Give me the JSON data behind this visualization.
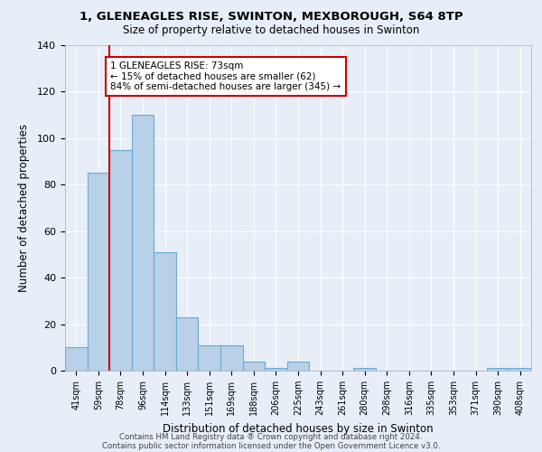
{
  "title1": "1, GLENEAGLES RISE, SWINTON, MEXBOROUGH, S64 8TP",
  "title2": "Size of property relative to detached houses in Swinton",
  "xlabel": "Distribution of detached houses by size in Swinton",
  "ylabel": "Number of detached properties",
  "categories": [
    "41sqm",
    "59sqm",
    "78sqm",
    "96sqm",
    "114sqm",
    "133sqm",
    "151sqm",
    "169sqm",
    "188sqm",
    "206sqm",
    "225sqm",
    "243sqm",
    "261sqm",
    "280sqm",
    "298sqm",
    "316sqm",
    "335sqm",
    "353sqm",
    "371sqm",
    "390sqm",
    "408sqm"
  ],
  "values": [
    10,
    85,
    95,
    110,
    51,
    23,
    11,
    11,
    4,
    1,
    4,
    0,
    0,
    1,
    0,
    0,
    0,
    0,
    0,
    1,
    1
  ],
  "bar_color": "#b8d0e8",
  "bar_edge_color": "#6aaad4",
  "vline_x": 1.5,
  "vline_color": "#cc0000",
  "annotation_text": "1 GLENEAGLES RISE: 73sqm\n← 15% of detached houses are smaller (62)\n84% of semi-detached houses are larger (345) →",
  "annotation_box_color": "#ffffff",
  "annotation_box_edge": "#cc0000",
  "ylim": [
    0,
    140
  ],
  "yticks": [
    0,
    20,
    40,
    60,
    80,
    100,
    120,
    140
  ],
  "footer1": "Contains HM Land Registry data ® Crown copyright and database right 2024.",
  "footer2": "Contains public sector information licensed under the Open Government Licence v3.0.",
  "bg_color": "#e8eef8",
  "plot_bg_color": "#e8eef8"
}
